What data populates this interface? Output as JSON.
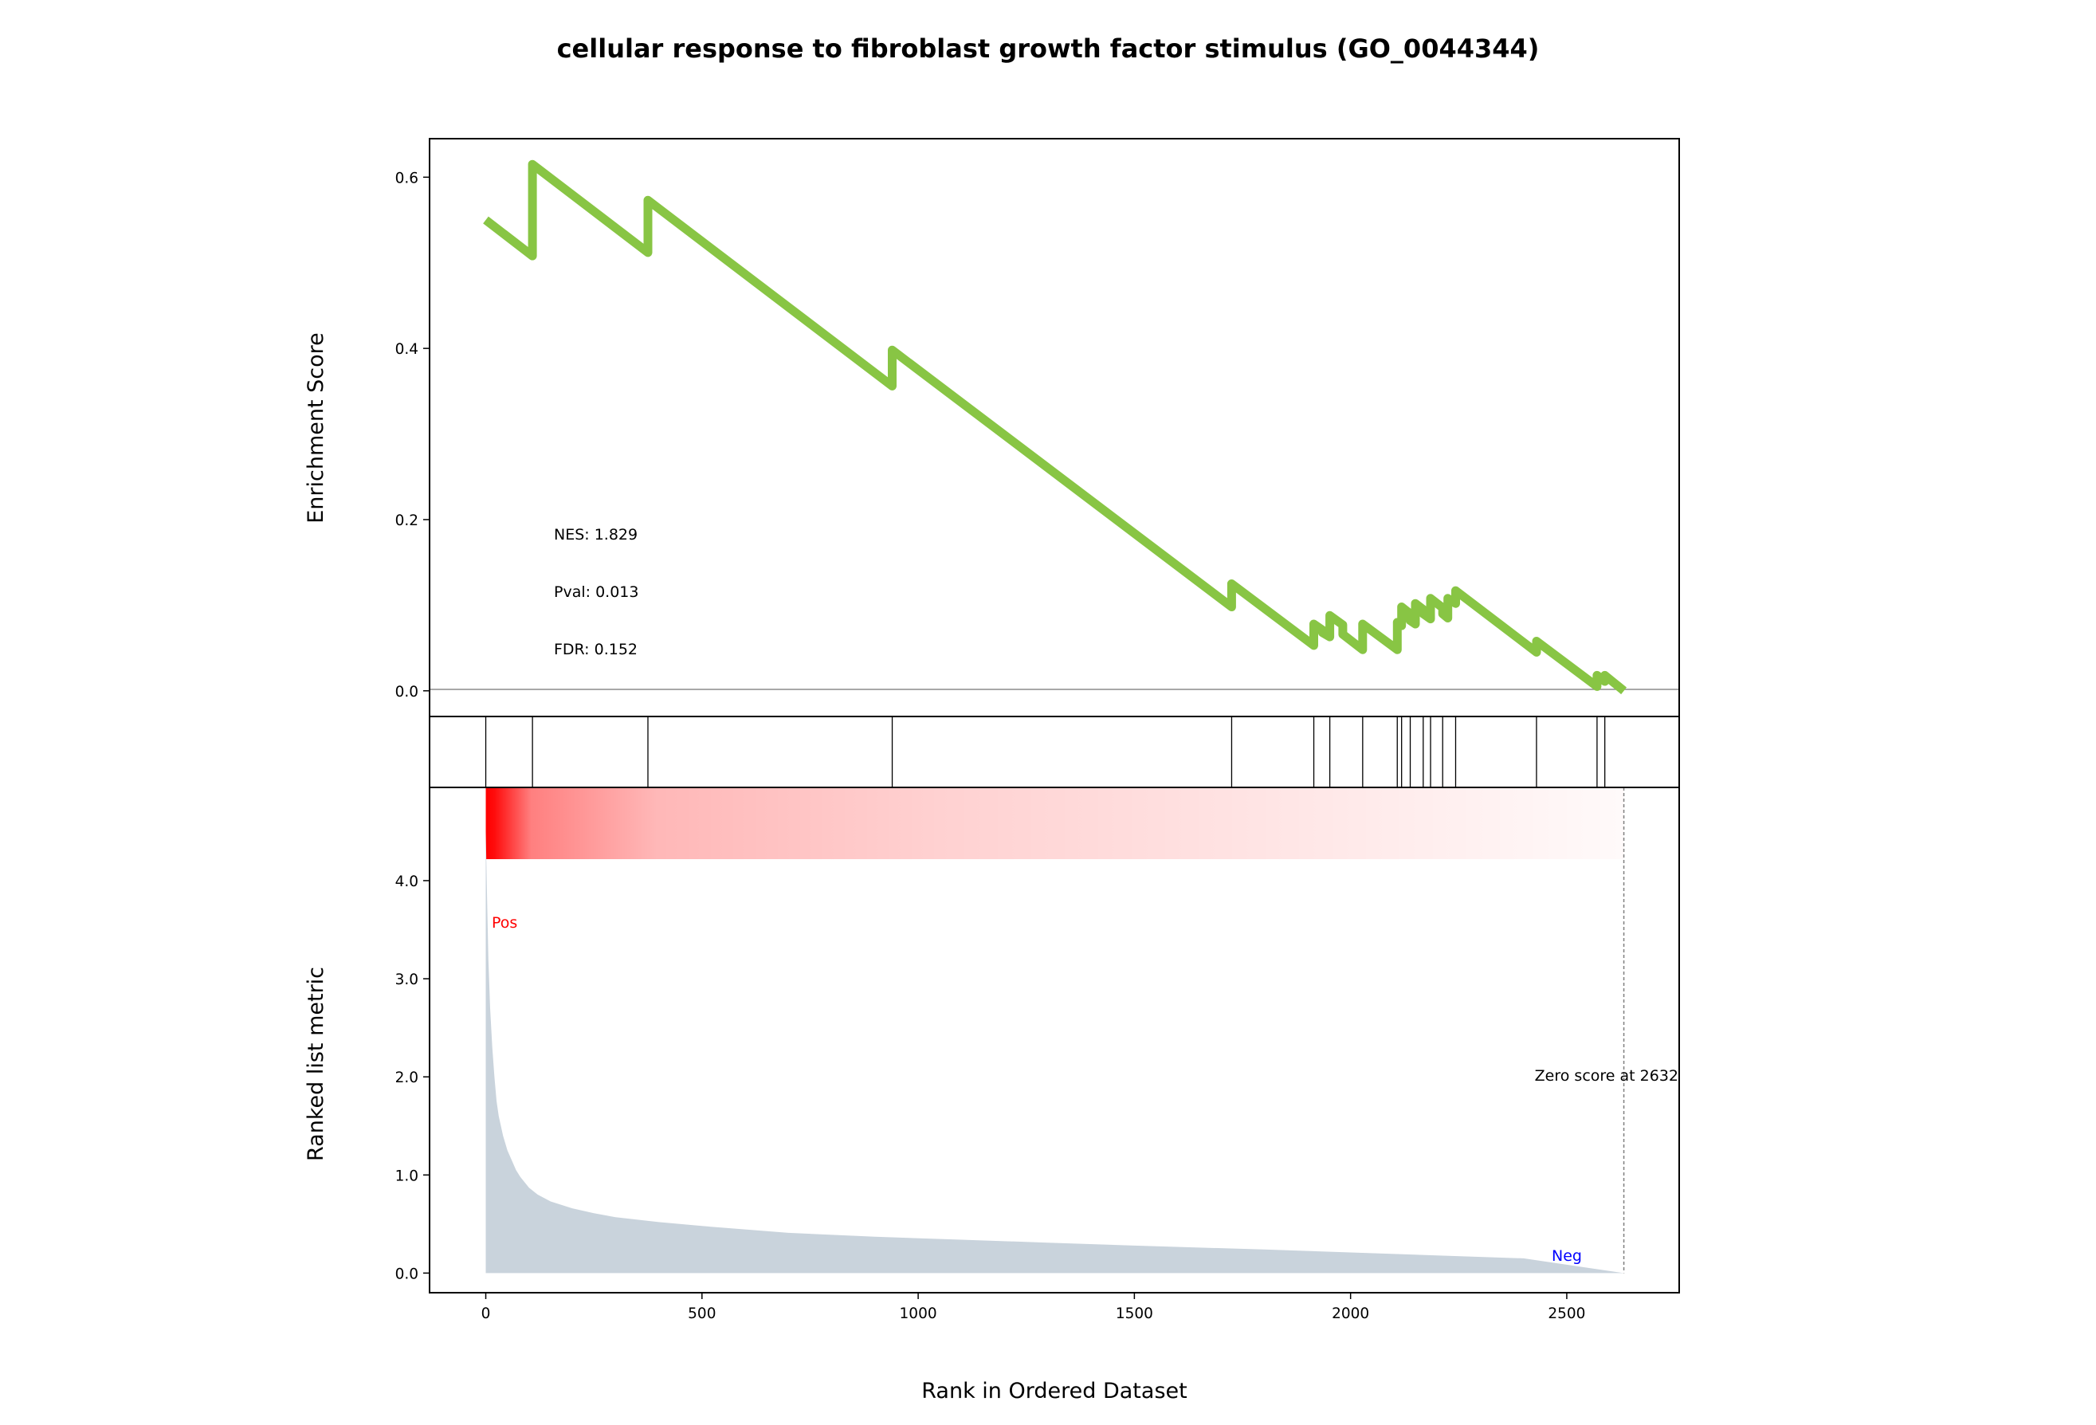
{
  "chart_data": {
    "type": "line",
    "title": "cellular response to fibroblast growth factor stimulus (GO_0044344)",
    "xlabel": "Rank in Ordered Dataset",
    "ylabel_top": "Enrichment Score",
    "ylabel_bottom": "Ranked list metric",
    "xlim": [
      -130,
      2760
    ],
    "x_ticks": [
      0,
      500,
      1000,
      1500,
      2000,
      2500
    ],
    "es_ylim": [
      -0.03,
      0.645
    ],
    "es_y_ticks": [
      "0.0",
      "0.2",
      "0.4",
      "0.6"
    ],
    "es_y_tick_values": [
      0.0,
      0.2,
      0.4,
      0.6
    ],
    "metric_ylim": [
      -0.2,
      4.95
    ],
    "metric_y_ticks": [
      "0.0",
      "1.0",
      "2.0",
      "3.0",
      "4.0"
    ],
    "metric_y_tick_values": [
      0,
      1,
      2,
      3,
      4
    ],
    "running_es": {
      "name": "",
      "color": "#88c544",
      "x": [
        0,
        108,
        108,
        375,
        375,
        940,
        940,
        1725,
        1725,
        1915,
        1915,
        1935,
        1935,
        1952,
        1952,
        1982,
        1982,
        2028,
        2028,
        2108,
        2108,
        2118,
        2118,
        2138,
        2138,
        2150,
        2150,
        2168,
        2168,
        2185,
        2185,
        2213,
        2213,
        2225,
        2225,
        2243,
        2243,
        2430,
        2430,
        2570,
        2570,
        2588,
        2588,
        2632
      ],
      "y": [
        0.55,
        0.508,
        0.615,
        0.512,
        0.573,
        0.356,
        0.398,
        0.098,
        0.125,
        0.053,
        0.078,
        0.071,
        0.068,
        0.063,
        0.088,
        0.077,
        0.066,
        0.048,
        0.078,
        0.048,
        0.08,
        0.076,
        0.098,
        0.09,
        0.082,
        0.078,
        0.102,
        0.095,
        0.09,
        0.084,
        0.108,
        0.097,
        0.09,
        0.085,
        0.108,
        0.102,
        0.117,
        0.045,
        0.058,
        0.005,
        0.018,
        0.011,
        0.018,
        0.0
      ]
    },
    "hit_positions": [
      0,
      108,
      375,
      940,
      1725,
      1915,
      1952,
      2028,
      2108,
      2118,
      2138,
      2168,
      2185,
      2213,
      2243,
      2430,
      2570,
      2588
    ],
    "ranked_metric": {
      "color": "#c9d3dc",
      "x": [
        0,
        3,
        6,
        10,
        15,
        20,
        25,
        30,
        40,
        50,
        60,
        70,
        80,
        100,
        120,
        150,
        200,
        250,
        300,
        400,
        500,
        700,
        900,
        1100,
        1300,
        1500,
        1800,
        2000,
        2200,
        2400,
        2632
      ],
      "values": [
        4.5,
        3.8,
        3.2,
        2.7,
        2.3,
        2.0,
        1.75,
        1.6,
        1.4,
        1.25,
        1.15,
        1.05,
        0.98,
        0.87,
        0.8,
        0.73,
        0.66,
        0.61,
        0.57,
        0.52,
        0.48,
        0.41,
        0.37,
        0.34,
        0.31,
        0.28,
        0.24,
        0.21,
        0.18,
        0.15,
        0.0
      ]
    },
    "gradient_bar": {
      "x_start": 0,
      "x_end": 2632,
      "color": "#ff0000"
    },
    "zero_score_position": 2632,
    "annotations": {
      "nes": "NES: 1.829",
      "pval": "Pval: 0.013",
      "fdr": "FDR: 0.152",
      "zero_score": "Zero score at 2632",
      "pos": "Pos",
      "neg": "Neg"
    }
  }
}
